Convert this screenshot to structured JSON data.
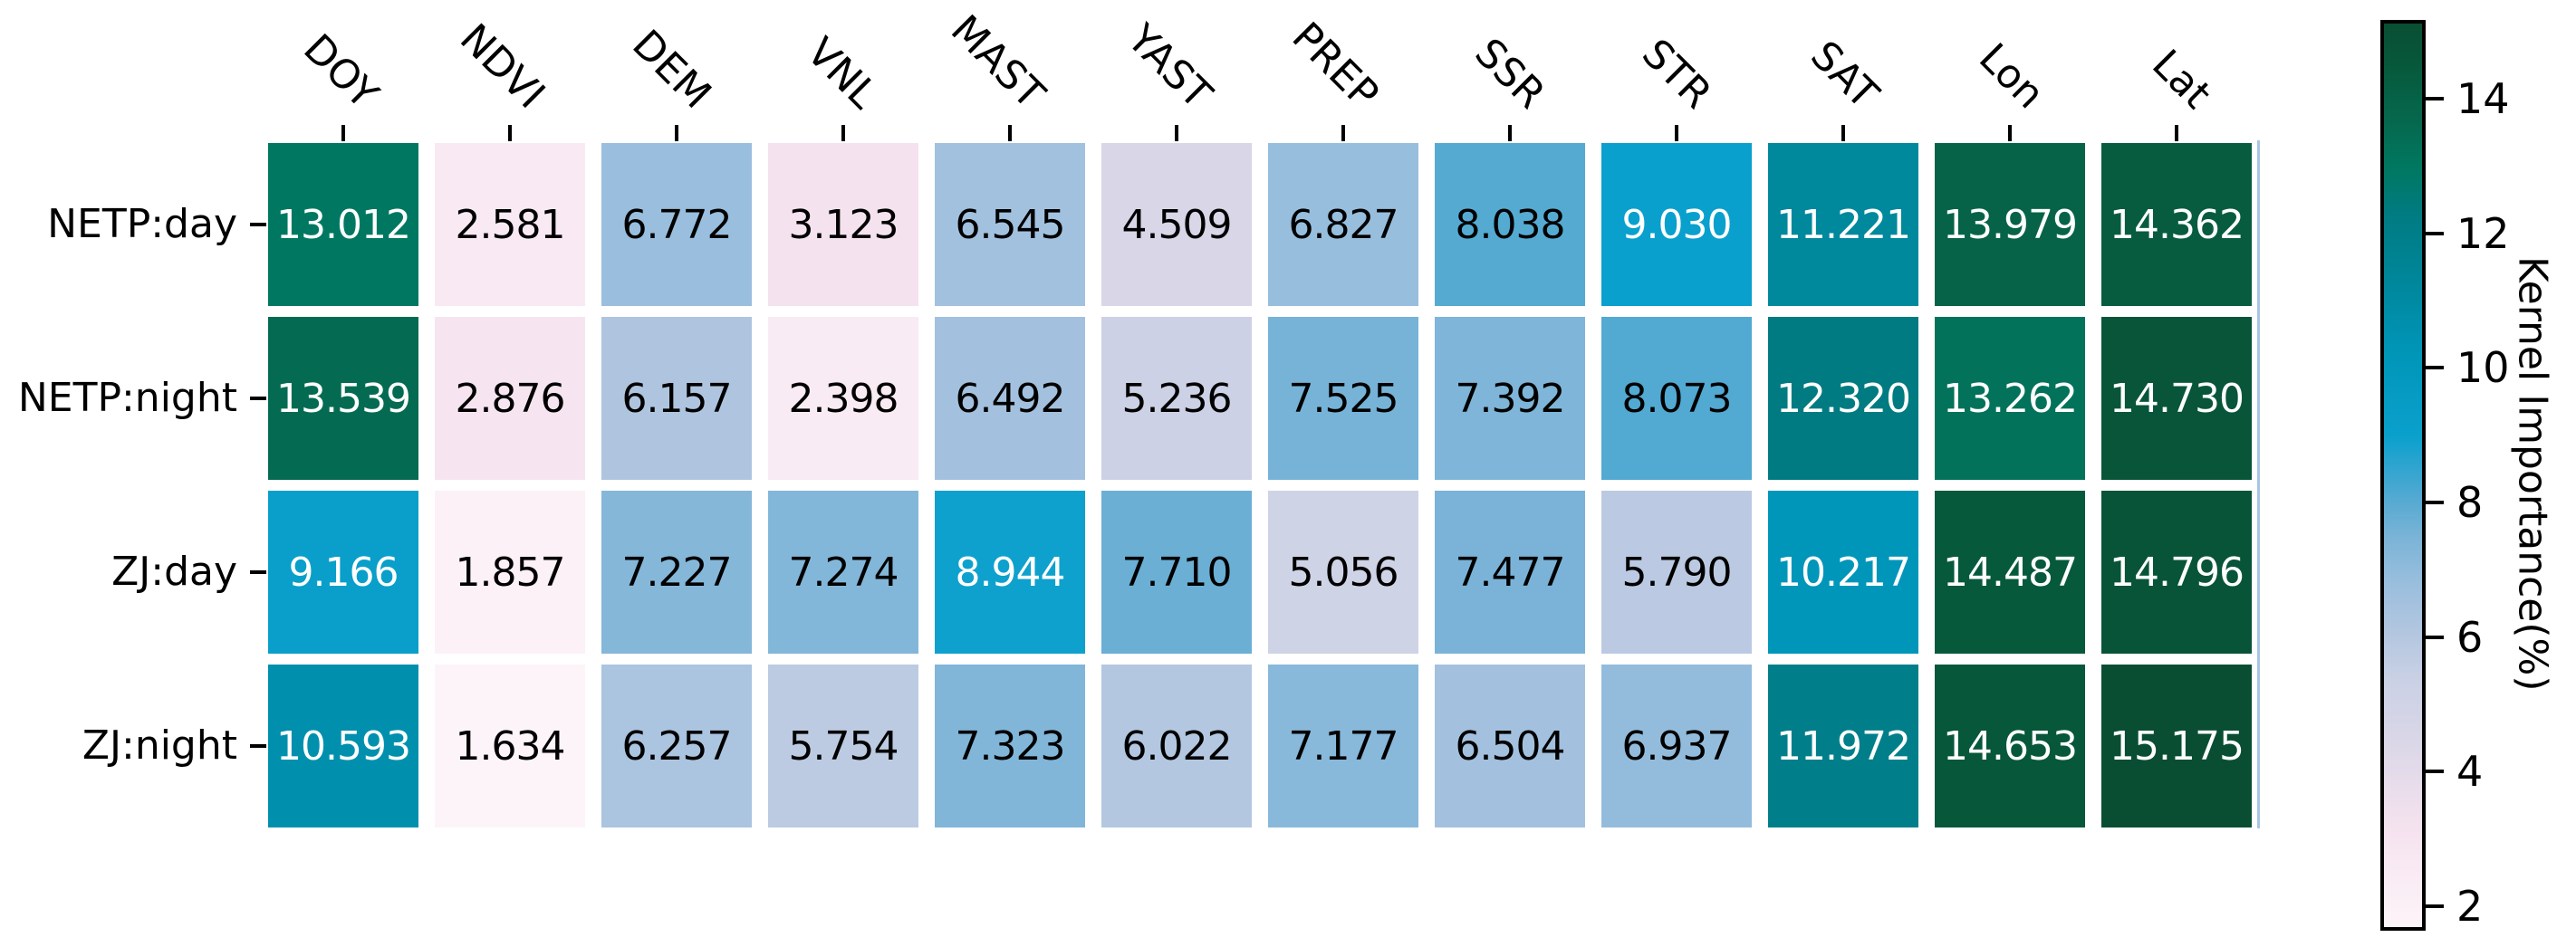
{
  "chart_data": {
    "type": "heatmap",
    "columns": [
      "DOY",
      "NDVI",
      "DEM",
      "VNL",
      "MAST",
      "YAST",
      "PREP",
      "SSR",
      "STR",
      "SAT",
      "Lon",
      "Lat"
    ],
    "rows": [
      "NETP:day",
      "NETP:night",
      "ZJ:day",
      "ZJ:night"
    ],
    "values": [
      [
        13.012,
        2.581,
        6.772,
        3.123,
        6.545,
        4.509,
        6.827,
        8.038,
        9.03,
        11.221,
        13.979,
        14.362
      ],
      [
        13.539,
        2.876,
        6.157,
        2.398,
        6.492,
        5.236,
        7.525,
        7.392,
        8.073,
        12.32,
        13.262,
        14.73
      ],
      [
        9.166,
        1.857,
        7.227,
        7.274,
        8.944,
        7.71,
        5.056,
        7.477,
        5.79,
        10.217,
        14.487,
        14.796
      ],
      [
        10.593,
        1.634,
        6.257,
        5.754,
        7.323,
        6.022,
        7.177,
        6.504,
        6.937,
        11.972,
        14.653,
        15.175
      ]
    ],
    "value_decimals": 3,
    "annotation_text_colors": {
      "dark_cell": "#ffffff",
      "light_cell": "#000000"
    },
    "colorbar": {
      "label": "Kernel Importance(%)",
      "ticks": [
        2,
        4,
        6,
        8,
        10,
        12,
        14
      ],
      "vmin": 1.634,
      "vmax": 15.175
    },
    "colormap_stops": [
      [
        1.634,
        "#fdf4f9"
      ],
      [
        2.6,
        "#f8e9f2"
      ],
      [
        3.15,
        "#f4e2ee"
      ],
      [
        4.5,
        "#d8d6e7"
      ],
      [
        5.3,
        "#cbd1e5"
      ],
      [
        6.0,
        "#b4c7e0"
      ],
      [
        6.8,
        "#99bedd"
      ],
      [
        7.5,
        "#79b3d7"
      ],
      [
        8.0,
        "#58aad2"
      ],
      [
        9.0,
        "#0aa0cd"
      ],
      [
        10.2,
        "#0096b9"
      ],
      [
        11.2,
        "#00889e"
      ],
      [
        12.3,
        "#007b82"
      ],
      [
        13.0,
        "#007861"
      ],
      [
        13.6,
        "#056a50"
      ],
      [
        14.0,
        "#066347"
      ],
      [
        14.5,
        "#07593c"
      ],
      [
        15.175,
        "#094e33"
      ]
    ],
    "spine_color": "#a9c5e4"
  }
}
